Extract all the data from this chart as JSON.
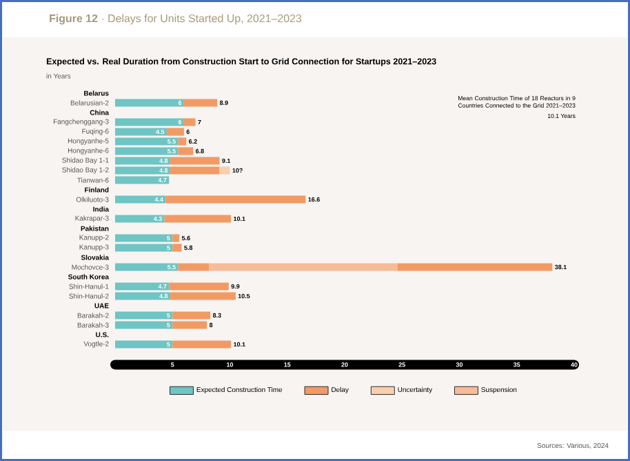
{
  "chart_data": {
    "type": "bar",
    "orientation": "horizontal",
    "stacked": true,
    "legend": "bottom",
    "title": "**Figure 12** · Delays for Units Started Up, 2021–2023",
    "subtitle": "Expected vs. Real Duration from Construction Start to Grid Connection for Startups 2021–2023",
    "annotations": [
      "in Years",
      "Mean Construction Time of 18 Reactors in 9 Countries Connected to the Grid 2021–2023",
      "10.1 Years",
      "Sources: Various, 2024"
    ],
    "categories": [
      "Belarus",
      "Belarusian-2",
      "China",
      "Fangchenggang-3",
      "Fuqing-6",
      "Hongyanhe-5",
      "Hongyanhe-6",
      "Shidao Bay 1-1",
      "Shidao Bay 1-2",
      "Tianwan-6",
      "Finland",
      "Olkiluoto-3",
      "India",
      "Kakrapar-3",
      "Pakistan",
      "Kanupp-2",
      "Kanupp-3",
      "Slovakia",
      "Mochovce-3",
      "South Korea",
      "Shin-Hanul-1",
      "Shin-Hanul-2",
      "UAE",
      "Barakah-2",
      "Barakah-3",
      "U.S.",
      "Vogtle-2"
    ],
    "series": [
      {
        "name": "Expected Construction Time",
        "color": "#6fc4c4",
        "values": [
          null,
          6,
          null,
          6,
          4.5,
          5.5,
          5.5,
          4.8,
          4.8,
          4.7,
          null,
          4.4,
          null,
          4.3,
          null,
          5,
          5,
          null,
          5.5,
          null,
          4.7,
          4.8,
          null,
          5,
          5,
          null,
          5
        ],
        "value_labels": [
          null,
          "6",
          null,
          "6",
          "4.5",
          "5.5",
          "5.5",
          "4.8",
          "4.8",
          "4.7",
          null,
          "4.4",
          null,
          "4.3",
          null,
          "5",
          "5",
          null,
          "5.5",
          null,
          "4.7",
          "4.8",
          null,
          "5",
          "5",
          null,
          "5"
        ]
      },
      {
        "name": "Delay",
        "color": "#f29a64",
        "values": [
          null,
          2.9,
          null,
          1,
          1.5,
          0.7,
          1.3,
          4.3,
          4.3,
          null,
          null,
          12.2,
          null,
          5.8,
          null,
          0.6,
          0.8,
          null,
          2.7,
          null,
          5.2,
          5.7,
          null,
          3.3,
          3,
          null,
          5.1
        ]
      },
      {
        "name": "Uncertainty",
        "color": "#f9cfae",
        "values": [
          null,
          null,
          null,
          null,
          null,
          null,
          null,
          null,
          0.9,
          null,
          null,
          null,
          null,
          null,
          null,
          null,
          null,
          null,
          null,
          null,
          null,
          null,
          null,
          null,
          null,
          null,
          null
        ]
      },
      {
        "name": "Suspension",
        "color": "#f6bb97",
        "values": [
          null,
          null,
          null,
          null,
          null,
          null,
          null,
          null,
          null,
          null,
          null,
          null,
          null,
          null,
          null,
          null,
          null,
          null,
          16.4,
          null,
          null,
          null,
          null,
          null,
          null,
          null,
          null
        ]
      },
      {
        "color": "#f29a64",
        "values": [
          null,
          null,
          null,
          null,
          null,
          null,
          null,
          null,
          null,
          null,
          null,
          null,
          null,
          null,
          null,
          null,
          null,
          null,
          13.5,
          null,
          null,
          null,
          null,
          null,
          null,
          null,
          null
        ]
      }
    ],
    "totals": [
      null,
      "8.9",
      null,
      "7",
      "6",
      "6.2",
      "6.8",
      "9.1",
      "10?",
      null,
      null,
      "16.6",
      null,
      "10.1",
      null,
      "5.6",
      "5.8",
      null,
      "38.1",
      null,
      "9.9",
      "10.5",
      null,
      "8.3",
      "8",
      null,
      "10.1"
    ],
    "xlim": [
      0,
      40
    ],
    "xticks": [
      5,
      10,
      15,
      20,
      25,
      30,
      35,
      40
    ]
  }
}
